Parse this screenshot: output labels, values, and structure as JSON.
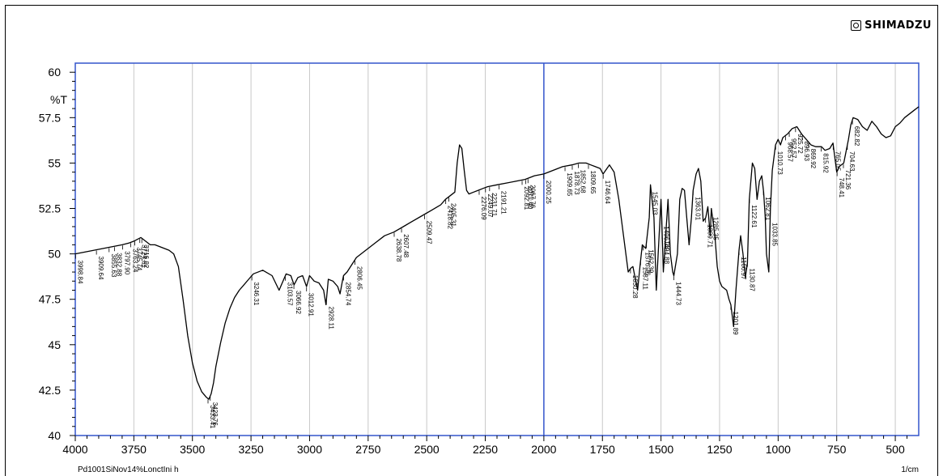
{
  "brand": {
    "name": "SHIMADZU",
    "logo_icon": "shimadzu-logo-icon"
  },
  "footer": {
    "left": "Pd1001SiNov14%LonctIni h",
    "right": "1/cm"
  },
  "chart_data": {
    "type": "line",
    "title": "",
    "xlabel": "1/cm",
    "ylabel": "%T",
    "xlim": [
      4000,
      400
    ],
    "ylim": [
      40,
      60.5
    ],
    "x_ticks": [
      4000,
      3750,
      3500,
      3250,
      3000,
      2750,
      2500,
      2250,
      2000,
      1750,
      1500,
      1250,
      1000,
      750,
      500
    ],
    "y_ticks": [
      40,
      42.5,
      45,
      47.5,
      50,
      52.5,
      55,
      57.5,
      60
    ],
    "y_tick_labels": [
      "40",
      "42.5",
      "45",
      "47.5",
      "50",
      "52.5",
      "55",
      "57.5",
      "60"
    ],
    "grid": true,
    "legend": "none",
    "colors": {
      "line": "#000000",
      "grid": "#c8c8c8",
      "frame": "#3355cc",
      "highlight": "#3355cc"
    },
    "series": [
      {
        "x": [
          4000,
          3960,
          3920,
          3880,
          3840,
          3800,
          3770,
          3750,
          3735,
          3720,
          3700,
          3680,
          3660,
          3640,
          3620,
          3600,
          3580,
          3560,
          3540,
          3520,
          3500,
          3480,
          3460,
          3440,
          3430,
          3420,
          3410,
          3400,
          3380,
          3360,
          3340,
          3320,
          3300,
          3280,
          3260,
          3240,
          3200,
          3160,
          3130,
          3110,
          3100,
          3080,
          3066,
          3050,
          3030,
          3013,
          3000,
          2980,
          2960,
          2940,
          2930,
          2920,
          2900,
          2880,
          2870,
          2860,
          2855,
          2840,
          2820,
          2800,
          2760,
          2720,
          2680,
          2640,
          2600,
          2560,
          2520,
          2480,
          2440,
          2420,
          2400,
          2380,
          2370,
          2360,
          2350,
          2340,
          2330,
          2320,
          2300,
          2280,
          2260,
          2240,
          2200,
          2160,
          2120,
          2080,
          2040,
          2000,
          1960,
          1920,
          1880,
          1850,
          1820,
          1800,
          1780,
          1760,
          1747,
          1720,
          1700,
          1680,
          1660,
          1640,
          1630,
          1620,
          1600,
          1590,
          1580,
          1565,
          1550,
          1545,
          1530,
          1520,
          1510,
          1500,
          1497,
          1490,
          1480,
          1470,
          1460,
          1450,
          1445,
          1430,
          1420,
          1410,
          1400,
          1390,
          1380,
          1370,
          1363,
          1350,
          1340,
          1330,
          1320,
          1309,
          1300,
          1290,
          1285,
          1270,
          1260,
          1250,
          1240,
          1220,
          1210,
          1202,
          1190,
          1180,
          1167,
          1160,
          1150,
          1140,
          1131,
          1123,
          1110,
          1100,
          1090,
          1080,
          1070,
          1062,
          1055,
          1050,
          1040,
          1033,
          1025,
          1011,
          1000,
          990,
          980,
          960,
          940,
          920,
          900,
          880,
          860,
          840,
          815,
          800,
          780,
          766,
          760,
          750,
          740,
          720,
          700,
          690,
          680,
          660,
          640,
          620,
          600,
          580,
          560,
          540,
          520,
          500,
          480,
          460,
          440,
          420,
          400
        ],
        "y": [
          50.0,
          50.1,
          50.2,
          50.3,
          50.4,
          50.5,
          50.6,
          50.7,
          50.8,
          50.9,
          50.7,
          50.5,
          50.5,
          50.4,
          50.3,
          50.2,
          50.0,
          49.3,
          47.5,
          45.5,
          44.0,
          43.0,
          42.4,
          42.1,
          42.0,
          42.3,
          42.9,
          43.8,
          45.1,
          46.2,
          47.0,
          47.6,
          48.0,
          48.3,
          48.6,
          48.9,
          49.1,
          48.8,
          48.0,
          48.6,
          48.9,
          48.8,
          48.3,
          48.7,
          48.8,
          48.2,
          48.8,
          48.5,
          48.4,
          48.0,
          47.2,
          48.6,
          48.5,
          48.2,
          47.8,
          48.5,
          48.8,
          49.0,
          49.4,
          49.8,
          50.2,
          50.6,
          51.0,
          51.2,
          51.5,
          51.8,
          52.1,
          52.4,
          52.7,
          53.0,
          53.2,
          53.4,
          55.0,
          56.0,
          55.8,
          54.6,
          53.5,
          53.3,
          53.4,
          53.5,
          53.6,
          53.7,
          53.8,
          53.9,
          54.0,
          54.1,
          54.3,
          54.4,
          54.6,
          54.8,
          54.9,
          55.0,
          55.0,
          54.9,
          54.8,
          54.7,
          54.4,
          54.9,
          54.5,
          53.0,
          51.0,
          49.0,
          49.2,
          49.3,
          48.0,
          49.3,
          50.5,
          50.3,
          52.0,
          53.8,
          52.0,
          48.0,
          50.5,
          53.0,
          52.0,
          49.0,
          51.0,
          53.0,
          50.0,
          49.0,
          48.8,
          50.0,
          53.0,
          53.6,
          53.5,
          52.0,
          50.5,
          52.0,
          53.5,
          54.4,
          54.7,
          54.0,
          51.8,
          52.0,
          52.6,
          51.0,
          52.5,
          51.0,
          49.3,
          48.5,
          48.2,
          48.0,
          47.5,
          47.2,
          46.0,
          48.0,
          50.2,
          51.0,
          50.0,
          48.7,
          49.5,
          53.0,
          55.0,
          54.7,
          53.0,
          54.0,
          54.3,
          53.4,
          52.0,
          50.0,
          49.0,
          52.5,
          54.6,
          56.0,
          56.3,
          56.0,
          56.4,
          56.6,
          56.9,
          57.0,
          56.6,
          56.3,
          56.0,
          55.9,
          55.9,
          55.7,
          55.8,
          56.1,
          55.5,
          54.5,
          54.8,
          55.0,
          56.3,
          57.1,
          57.5,
          57.4,
          57.0,
          56.8,
          57.3,
          57.0,
          56.6,
          56.4,
          56.5,
          57.0,
          57.2,
          57.5,
          57.7,
          57.9,
          58.1
        ]
      }
    ],
    "annotations": [
      {
        "label": "3998.84",
        "x": 3998.84
      },
      {
        "label": "3909.64",
        "x": 3909.64
      },
      {
        "label": "3855.63",
        "x": 3855.63
      },
      {
        "label": "3832.88",
        "x": 3832.88
      },
      {
        "label": "3797.90",
        "x": 3797.9
      },
      {
        "label": "3763.24",
        "x": 3763.24
      },
      {
        "label": "3745.74",
        "x": 3745.74
      },
      {
        "label": "3724.61",
        "x": 3724.61
      },
      {
        "label": "3716.02",
        "x": 3716.02
      },
      {
        "label": "3433.41",
        "x": 3433.41
      },
      {
        "label": "3423.76",
        "x": 3423.76
      },
      {
        "label": "3246.31",
        "x": 3246.31
      },
      {
        "label": "3103.57",
        "x": 3103.57
      },
      {
        "label": "3066.92",
        "x": 3066.92
      },
      {
        "label": "3012.91",
        "x": 3012.91
      },
      {
        "label": "2928.11",
        "x": 2928.11
      },
      {
        "label": "2854.74",
        "x": 2854.74
      },
      {
        "label": "2806.45",
        "x": 2806.45
      },
      {
        "label": "2638.78",
        "x": 2638.78
      },
      {
        "label": "2607.48",
        "x": 2607.48
      },
      {
        "label": "2509.47",
        "x": 2509.47
      },
      {
        "label": "2418.82",
        "x": 2418.82
      },
      {
        "label": "2405.31",
        "x": 2405.31
      },
      {
        "label": "2276.09",
        "x": 2276.09
      },
      {
        "label": "2249.07",
        "x": 2249.07
      },
      {
        "label": "2231.71",
        "x": 2231.71
      },
      {
        "label": "2191.21",
        "x": 2191.21
      },
      {
        "label": "2092.81",
        "x": 2092.81
      },
      {
        "label": "2077.40",
        "x": 2077.4
      },
      {
        "label": "2067.76",
        "x": 2067.76
      },
      {
        "label": "2000.25",
        "x": 2000.25
      },
      {
        "label": "1909.65",
        "x": 1909.65
      },
      {
        "label": "1878.73",
        "x": 1878.73
      },
      {
        "label": "1852.68",
        "x": 1852.68
      },
      {
        "label": "1809.65",
        "x": 1809.65
      },
      {
        "label": "1746.64",
        "x": 1746.64
      },
      {
        "label": "1630.28",
        "x": 1630.28
      },
      {
        "label": "1587.11",
        "x": 1587.11
      },
      {
        "label": "1576.76",
        "x": 1576.76
      },
      {
        "label": "1562.39",
        "x": 1562.39
      },
      {
        "label": "1545.03",
        "x": 1545.03
      },
      {
        "label": "1496.74",
        "x": 1496.74
      },
      {
        "label": "1494.88",
        "x": 1494.88
      },
      {
        "label": "1444.73",
        "x": 1444.73
      },
      {
        "label": "1363.01",
        "x": 1363.01
      },
      {
        "label": "1309.71",
        "x": 1309.71
      },
      {
        "label": "1285.35",
        "x": 1285.35
      },
      {
        "label": "1201.89",
        "x": 1201.89
      },
      {
        "label": "1166.97",
        "x": 1166.97
      },
      {
        "label": "1130.87",
        "x": 1130.87
      },
      {
        "label": "1122.61",
        "x": 1122.61
      },
      {
        "label": "1062.81",
        "x": 1062.81
      },
      {
        "label": "1033.85",
        "x": 1033.85
      },
      {
        "label": "1010.73",
        "x": 1010.73
      },
      {
        "label": "968.57",
        "x": 968.57
      },
      {
        "label": "952.57",
        "x": 952.57
      },
      {
        "label": "925.72",
        "x": 925.72
      },
      {
        "label": "896.93",
        "x": 896.93
      },
      {
        "label": "869.92",
        "x": 869.92
      },
      {
        "label": "815.92",
        "x": 815.92
      },
      {
        "label": "765.05",
        "x": 765.05
      },
      {
        "label": "748.41",
        "x": 748.41
      },
      {
        "label": "721.36",
        "x": 721.36
      },
      {
        "label": "704.63",
        "x": 704.63
      },
      {
        "label": "682.82",
        "x": 682.82
      }
    ]
  }
}
